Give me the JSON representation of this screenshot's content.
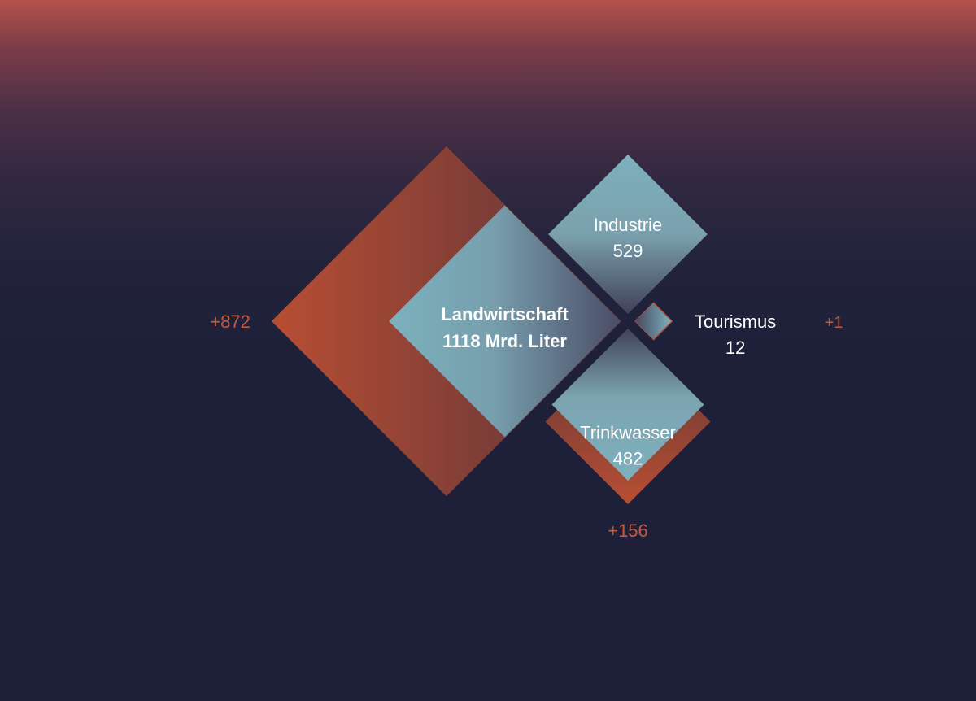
{
  "chart_data": {
    "type": "diamond-area",
    "unit": "Mrd. Liter",
    "categories": [
      {
        "name": "Landwirtschaft",
        "value": 1118,
        "value_label": "1118 Mrd. Liter",
        "increase": 872,
        "increase_label": "+872",
        "main": true
      },
      {
        "name": "Industrie",
        "value": 529,
        "value_label": "529",
        "increase": null,
        "increase_label": ""
      },
      {
        "name": "Trinkwasser",
        "value": 482,
        "value_label": "482",
        "increase": 156,
        "increase_label": "+156"
      },
      {
        "name": "Tourismus",
        "value": 12,
        "value_label": "12",
        "increase": 1,
        "increase_label": "+1"
      }
    ]
  },
  "colors": {
    "diamond_light": "#7cb1bd",
    "diamond_dark": "#575a72",
    "increase_bright": "#b84e33",
    "increase_dark": "#5d3637",
    "text_white": "#ffffff",
    "text_accent": "#c45a3c"
  }
}
